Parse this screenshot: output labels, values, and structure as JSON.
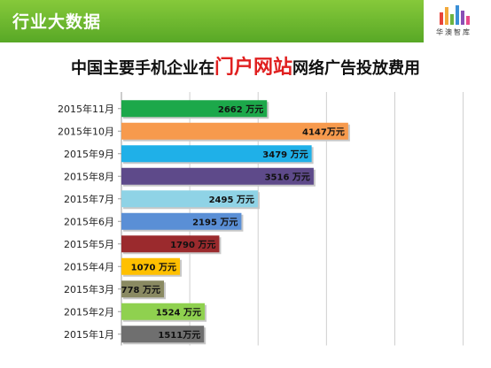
{
  "header": {
    "title": "行业大数据",
    "logo_text": "华澳智库",
    "logo_icon": "bar-logo-icon"
  },
  "chart_title": {
    "prefix": "中国主要手机企业在",
    "highlight": "门户网站",
    "suffix": "网络广告投放费用"
  },
  "chart_data": {
    "type": "bar",
    "orientation": "horizontal",
    "title": "中国主要手机企业在门户网站网络广告投放费用",
    "xlabel": "",
    "ylabel": "",
    "xlim": [
      0,
      6500
    ],
    "grid": true,
    "unit": "万元",
    "categories": [
      "2015年11月",
      "2015年10月",
      "2015年9月",
      "2015年8月",
      "2015年7月",
      "2015年6月",
      "2015年5月",
      "2015年4月",
      "2015年3月",
      "2015年2月",
      "2015年1月"
    ],
    "values": [
      2662,
      4147,
      3479,
      3516,
      2495,
      2195,
      1790,
      1070,
      778,
      1524,
      1511
    ],
    "data_labels": [
      "2662 万元",
      "4147万元",
      "3479 万元",
      "3516 万元",
      "2495  万元",
      "2195 万元",
      "1790 万元",
      "1070  万元",
      "778 万元",
      "1524 万元",
      "1511万元"
    ],
    "colors": [
      "#1ca84a",
      "#f79a4d",
      "#1fb0e8",
      "#5e4a8a",
      "#8fd3e6",
      "#5a8fd6",
      "#9b2a2d",
      "#ffc000",
      "#8a8a62",
      "#8fd14f",
      "#6f6f6f"
    ]
  }
}
